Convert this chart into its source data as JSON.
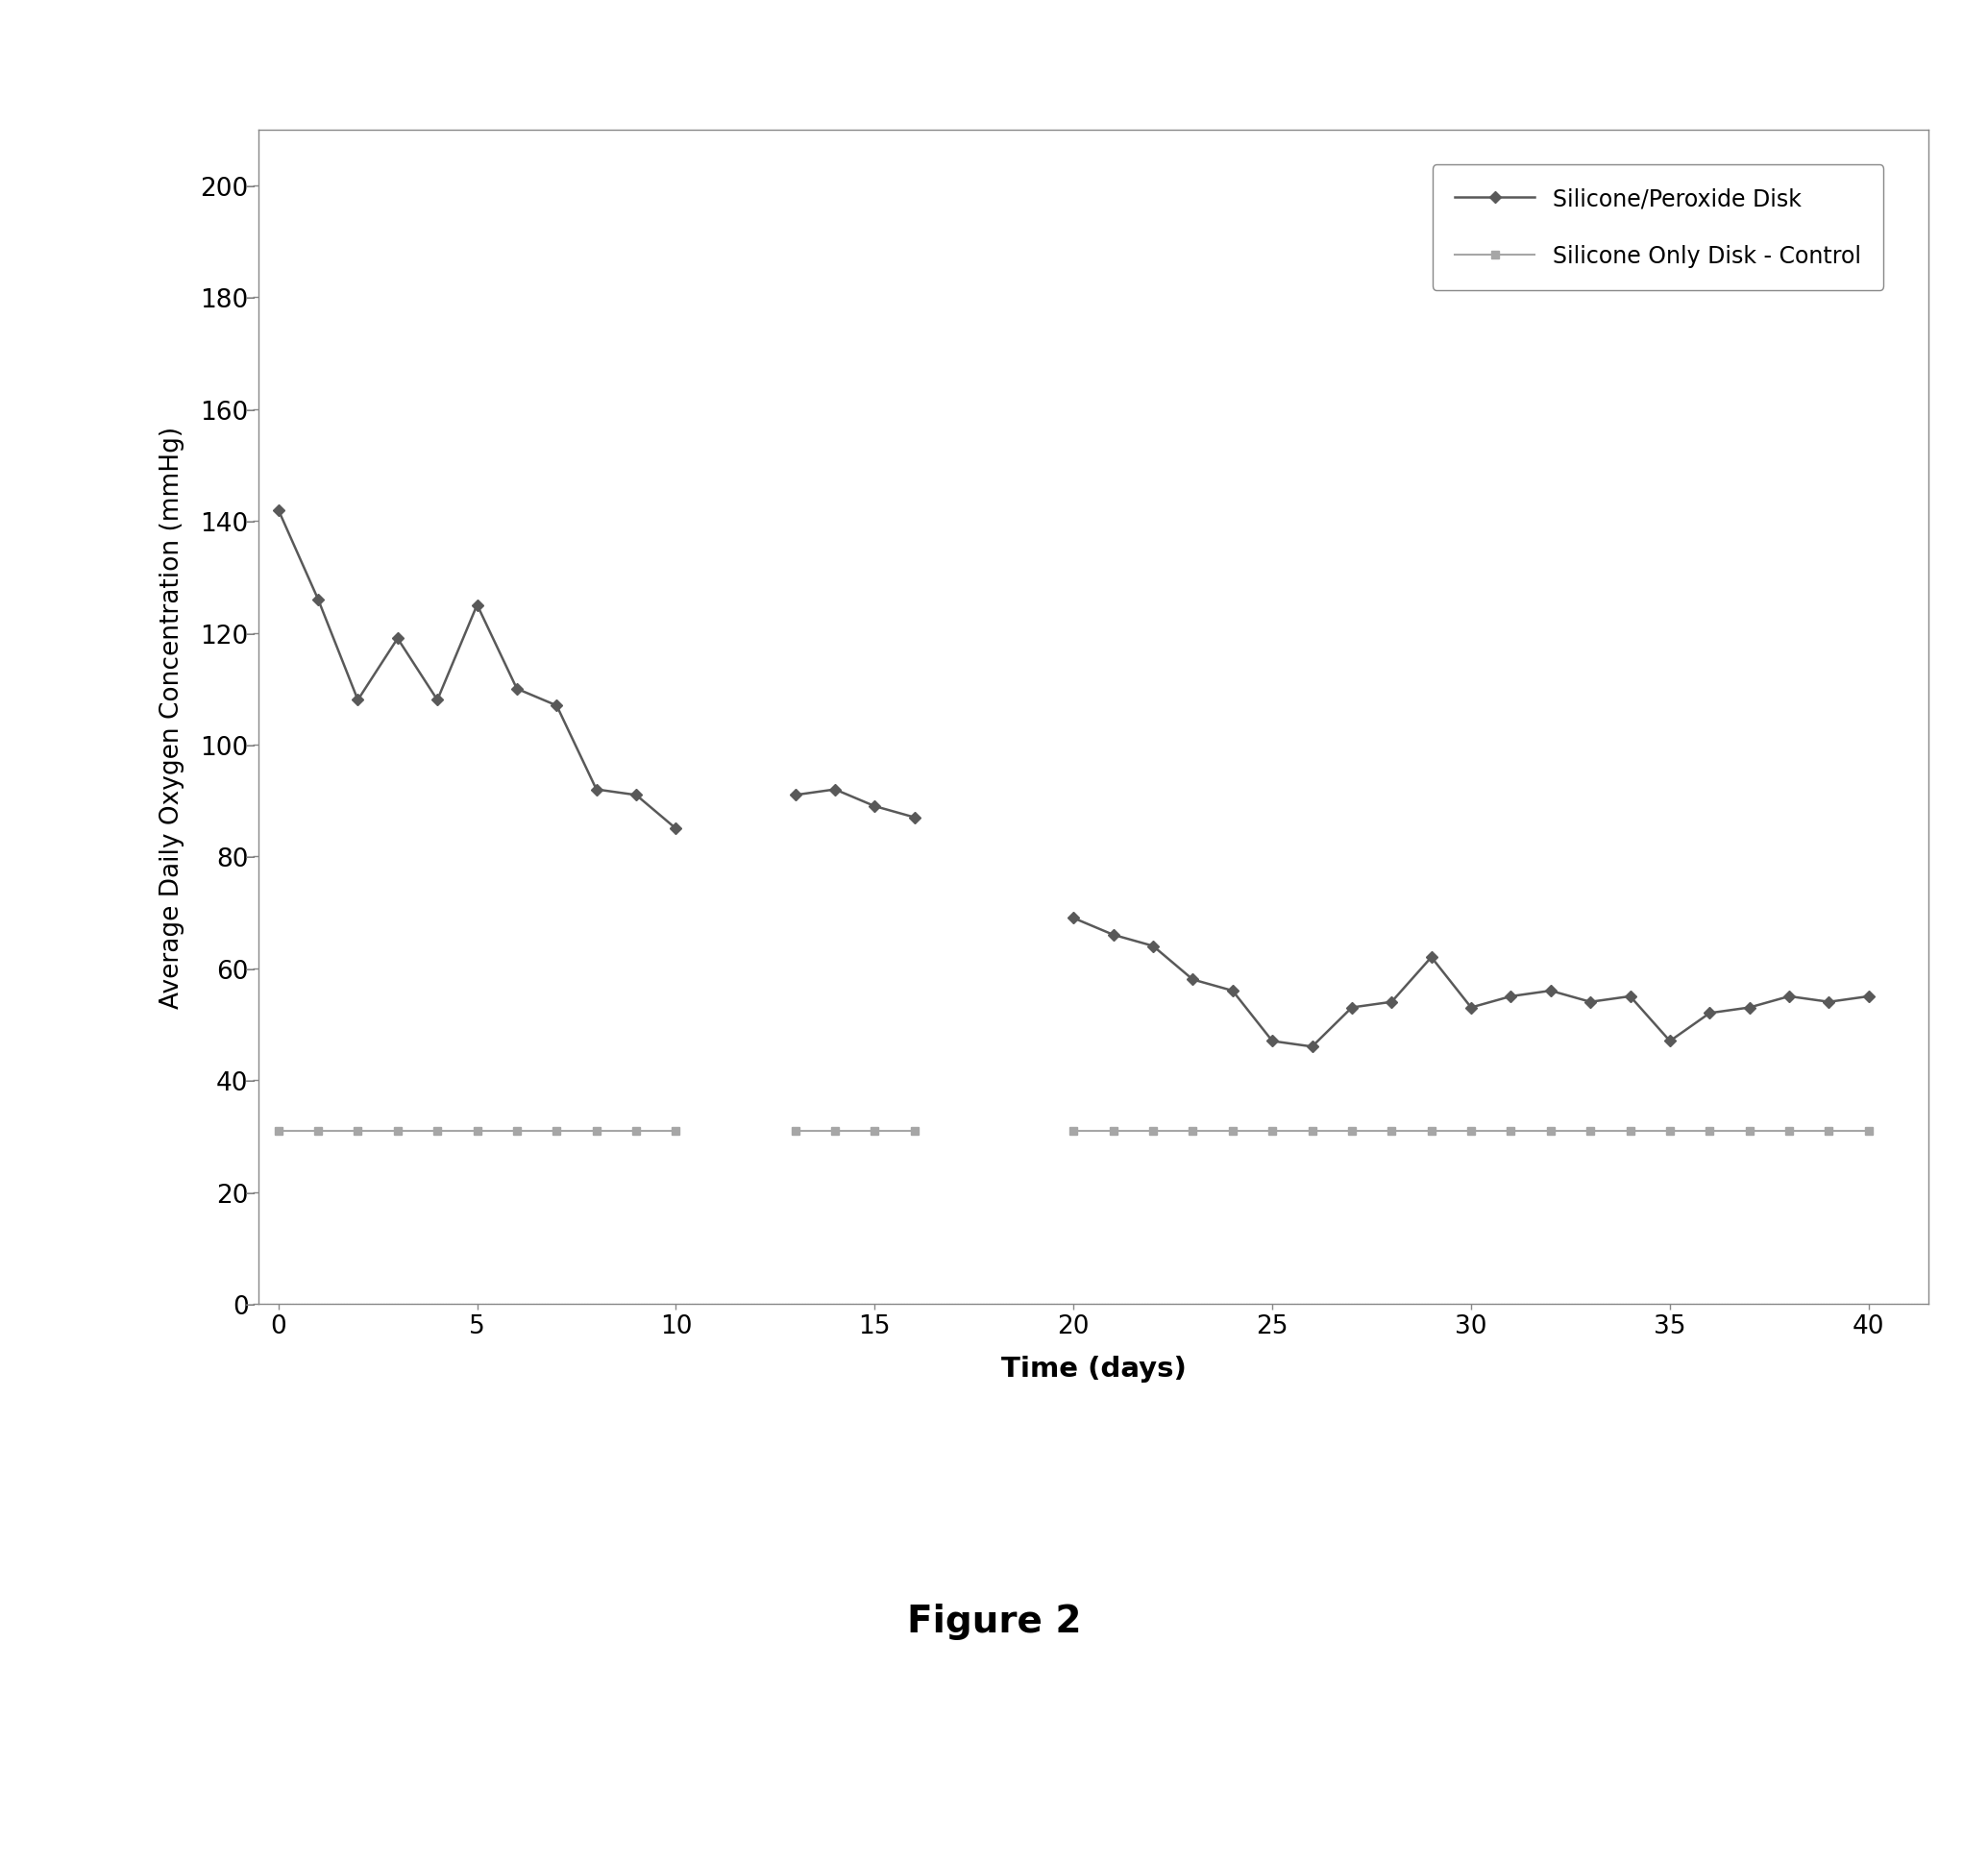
{
  "peroxide_segments": [
    {
      "x": [
        0,
        1,
        2,
        3,
        4,
        5,
        6,
        7,
        8,
        9,
        10
      ],
      "y": [
        142,
        126,
        108,
        119,
        108,
        125,
        110,
        107,
        92,
        91,
        85
      ]
    },
    {
      "x": [
        13,
        14,
        15,
        16
      ],
      "y": [
        91,
        92,
        89,
        87
      ]
    },
    {
      "x": [
        20,
        21,
        22,
        23,
        24,
        25,
        26,
        27,
        28,
        29,
        30,
        31,
        32,
        33,
        34,
        35,
        36,
        37,
        38,
        39,
        40
      ],
      "y": [
        69,
        66,
        64,
        58,
        56,
        47,
        46,
        53,
        54,
        62,
        53,
        55,
        56,
        54,
        55,
        47,
        52,
        53,
        55,
        54,
        55
      ]
    }
  ],
  "control_segments": [
    {
      "x": [
        0,
        1,
        2,
        3,
        4,
        5,
        6,
        7,
        8,
        9,
        10
      ],
      "y": [
        31,
        31,
        31,
        31,
        31,
        31,
        31,
        31,
        31,
        31,
        31
      ]
    },
    {
      "x": [
        13,
        14,
        15,
        16
      ],
      "y": [
        31,
        31,
        31,
        31
      ]
    },
    {
      "x": [
        20,
        21,
        22,
        23,
        24,
        25,
        26,
        27,
        28,
        29,
        30,
        31,
        32,
        33,
        34,
        35,
        36,
        37,
        38,
        39,
        40
      ],
      "y": [
        31,
        31,
        31,
        31,
        31,
        31,
        31,
        31,
        31,
        31,
        31,
        31,
        31,
        31,
        31,
        31,
        31,
        31,
        31,
        31,
        31
      ]
    }
  ],
  "peroxide_color": "#595959",
  "control_color": "#a6a6a6",
  "peroxide_label": "Silicone/Peroxide Disk",
  "control_label": "Silicone Only Disk - Control",
  "xlabel": "Time (days)",
  "ylabel": "Average Daily Oxygen Concentration (mmHg)",
  "xlim": [
    -0.5,
    41.5
  ],
  "ylim": [
    0,
    210
  ],
  "yticks": [
    0,
    20,
    40,
    60,
    80,
    100,
    120,
    140,
    160,
    180,
    200
  ],
  "xticks": [
    0,
    5,
    10,
    15,
    20,
    25,
    30,
    35,
    40
  ],
  "figure_caption": "Figure 2",
  "background_color": "#ffffff"
}
